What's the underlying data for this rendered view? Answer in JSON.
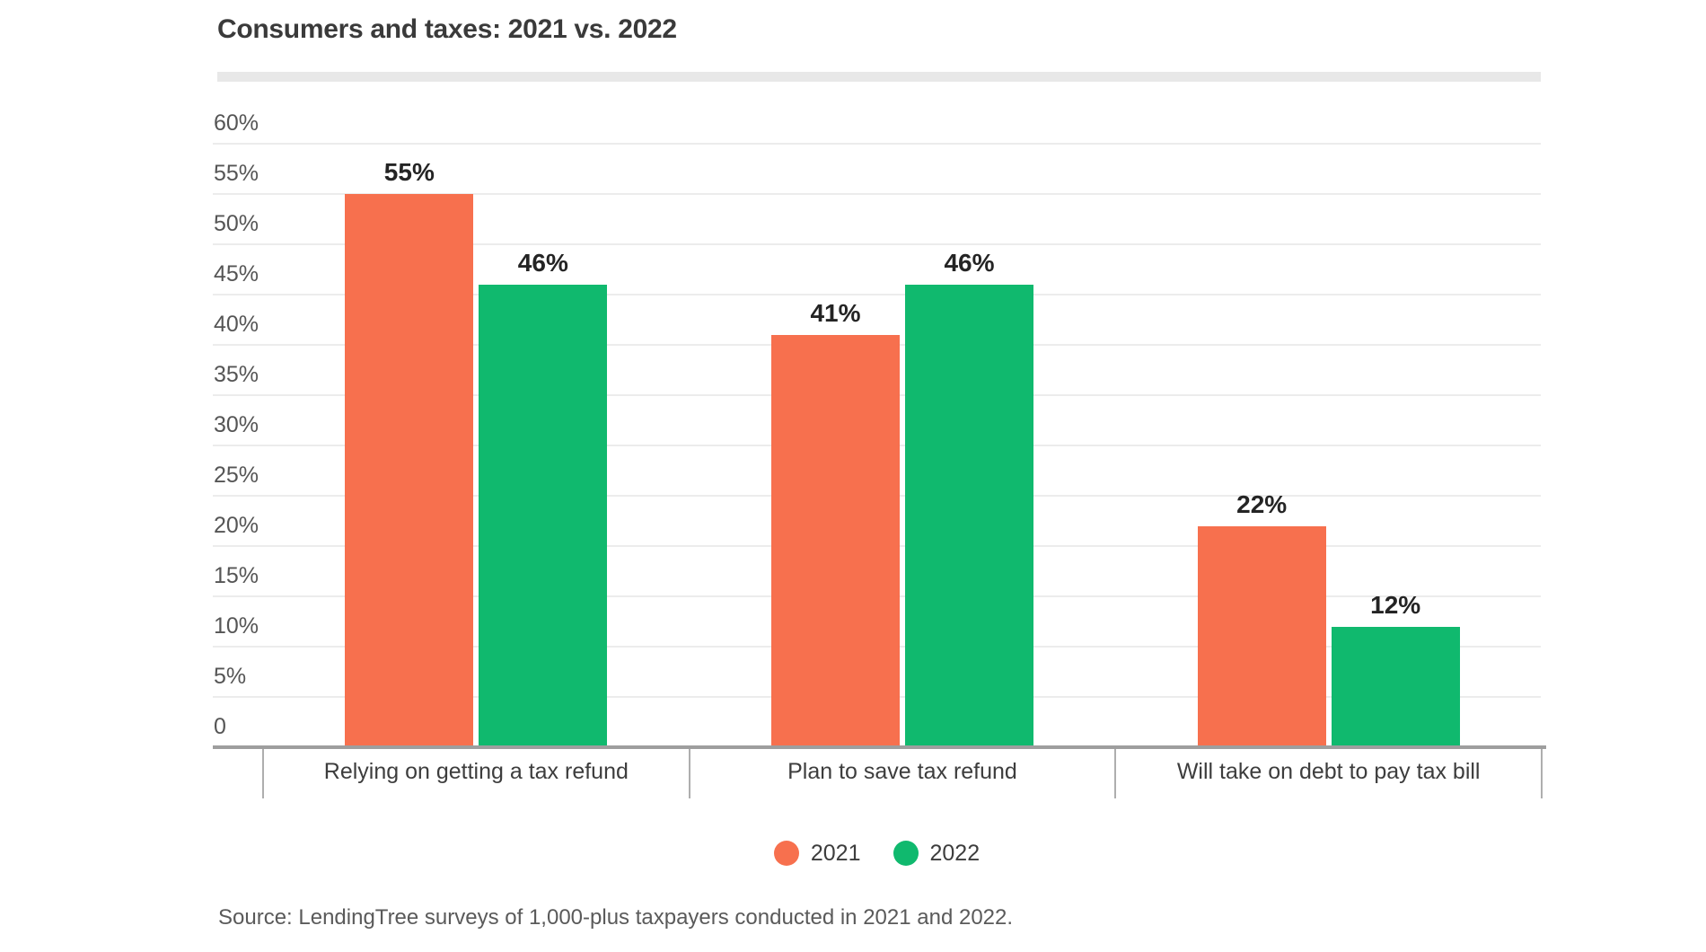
{
  "header": {
    "title": "Consumers and taxes: 2021 vs. 2022"
  },
  "footer": {
    "source": "Source: LendingTree surveys of 1,000-plus taxpayers conducted in 2021 and 2022."
  },
  "colors": {
    "series_2021": "#F7704E",
    "series_2022": "#10B96E",
    "gridline": "#ececec",
    "axis_line": "#9e9e9e",
    "title_underline": "#e8e8e8"
  },
  "chart_data": {
    "type": "bar",
    "title": "Consumers and taxes: 2021 vs. 2022",
    "categories": [
      "Relying on getting a tax refund",
      "Plan to save tax refund",
      "Will take on debt to pay tax bill"
    ],
    "series": [
      {
        "name": "2021",
        "color": "#F7704E",
        "values": [
          55,
          41,
          22
        ],
        "value_labels": [
          "55%",
          "41%",
          "22%"
        ]
      },
      {
        "name": "2022",
        "color": "#10B96E",
        "values": [
          46,
          46,
          12
        ],
        "value_labels": [
          "46%",
          "46%",
          "12%"
        ]
      }
    ],
    "xlabel": "",
    "ylabel": "",
    "ylim": [
      0,
      60
    ],
    "y_tick_values": [
      60,
      55,
      50,
      45,
      40,
      35,
      30,
      25,
      20,
      15,
      10,
      5,
      0
    ],
    "y_tick_labels": [
      "60%",
      "55%",
      "50%",
      "45%",
      "40%",
      "35%",
      "30%",
      "25%",
      "20%",
      "15%",
      "10%",
      "5%",
      "0"
    ],
    "grid": true,
    "legend_position": "bottom"
  }
}
